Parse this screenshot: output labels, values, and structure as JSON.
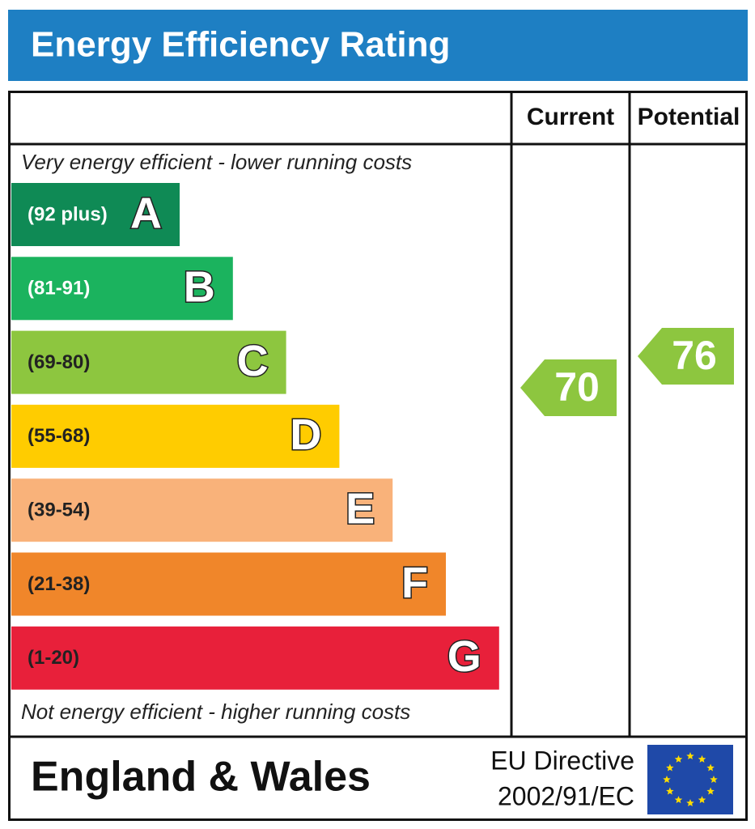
{
  "header": {
    "title": "Energy Efficiency Rating",
    "columns": [
      "Current",
      "Potential"
    ]
  },
  "top_note": "Very energy efficient - lower running costs",
  "bands": [
    {
      "range": "(92 plus)",
      "letter": "A",
      "color": "#0f8a55"
    },
    {
      "range": "(81-91)",
      "letter": "B",
      "color": "#1bb35e"
    },
    {
      "range": "(69-80)",
      "letter": "C",
      "color": "#8dc63f"
    },
    {
      "range": "(55-68)",
      "letter": "D",
      "color": "#ffcc00"
    },
    {
      "range": "(39-54)",
      "letter": "E",
      "color": "#f9b27a"
    },
    {
      "range": "(21-38)",
      "letter": "F",
      "color": "#f0862a"
    },
    {
      "range": "(1-20)",
      "letter": "G",
      "color": "#e8203a"
    }
  ],
  "bottom_note": "Not energy efficient - higher running costs",
  "ratings": {
    "current": 70,
    "potential": 76,
    "color": "#8dc63f"
  },
  "footer": {
    "region": "England & Wales",
    "directive": [
      "EU Directive",
      "2002/91/EC"
    ]
  }
}
